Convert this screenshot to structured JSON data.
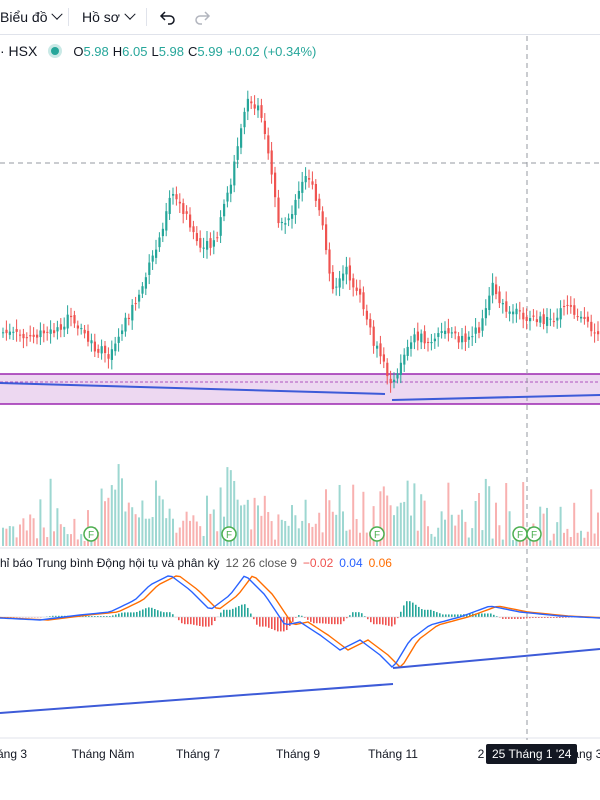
{
  "toolbar": {
    "chart_label": "Biểu đồ",
    "profile_label": "Hồ sơ",
    "undo_icon": "undo-icon",
    "redo_icon": "redo-icon"
  },
  "legend": {
    "symbol": "· HSX",
    "o_key": "O",
    "o_val": "5.98",
    "h_key": "H",
    "h_val": "6.05",
    "l_key": "L",
    "l_val": "5.98",
    "c_key": "C",
    "c_val": "5.99",
    "change": "+0.02 (+0.34%)"
  },
  "macd": {
    "title": "hỉ báo Trung bình Động hội tụ và phân kỳ",
    "params": "12 26 close 9",
    "v1": "−0.02",
    "v2": "0.04",
    "v3": "0.06"
  },
  "axis": {
    "ticks": [
      "áng 3",
      "Tháng Năm",
      "Tháng 7",
      "Tháng 9",
      "Tháng 11",
      "2",
      "háng 3"
    ],
    "crosshair_date": "25 Tháng 1 '24"
  },
  "markers": {
    "label": "F"
  },
  "colors": {
    "up": "#26a69a",
    "down": "#ef5350",
    "macd_line": "#2962ff",
    "signal_line": "#ff6d00",
    "zone_fill": "#e1bee7",
    "zone_border": "#9c27b0",
    "trendline": "#3d5bd8"
  }
}
